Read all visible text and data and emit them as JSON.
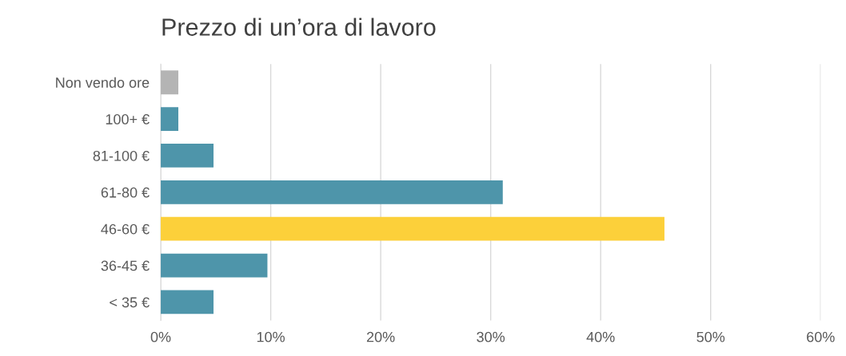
{
  "chart_data": {
    "type": "bar",
    "orientation": "horizontal",
    "title": "Prezzo di un’ora di lavoro",
    "categories": [
      "Non vendo ore",
      "100+ €",
      "81-100 €",
      "61-80 €",
      "46-60 €",
      "36-45 €",
      "< 35 €"
    ],
    "values": [
      1.6,
      1.6,
      4.8,
      31.1,
      45.8,
      9.7,
      4.8
    ],
    "colors": [
      "#b4b4b4",
      "#4e95aa",
      "#4e95aa",
      "#4e95aa",
      "#fcd03a",
      "#4e95aa",
      "#4e95aa"
    ],
    "xlim": [
      0,
      60
    ],
    "xticks": [
      {
        "value": 0,
        "label": "0%"
      },
      {
        "value": 10,
        "label": "10%"
      },
      {
        "value": 20,
        "label": "20%"
      },
      {
        "value": 30,
        "label": "30%"
      },
      {
        "value": 40,
        "label": "40%"
      },
      {
        "value": 50,
        "label": "50%"
      },
      {
        "value": 60,
        "label": "60%"
      }
    ],
    "grid": "x",
    "legend": false
  }
}
